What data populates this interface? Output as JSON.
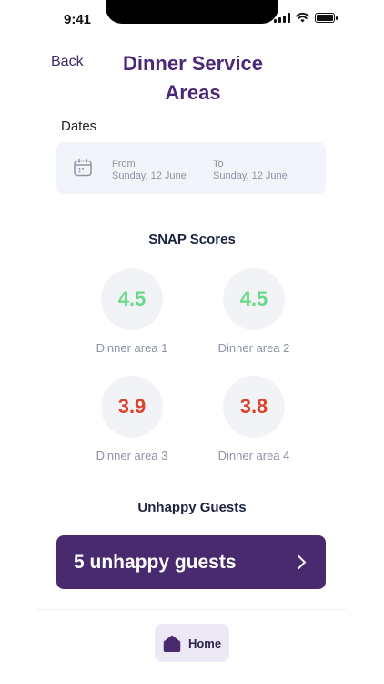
{
  "status_bar": {
    "time": "9:41"
  },
  "header": {
    "back_label": "Back",
    "title": "Dinner Service Areas"
  },
  "dates": {
    "label": "Dates",
    "from_label": "From",
    "from_value": "Sunday, 12 June",
    "to_label": "To",
    "to_value": "Sunday, 12 June"
  },
  "snap": {
    "title": "SNAP Scores",
    "areas": [
      {
        "score": "4.5",
        "label": "Dinner area 1",
        "status": "good"
      },
      {
        "score": "4.5",
        "label": "Dinner area 2",
        "status": "good"
      },
      {
        "score": "3.9",
        "label": "Dinner area 3",
        "status": "bad"
      },
      {
        "score": "3.8",
        "label": "Dinner area 4",
        "status": "bad"
      }
    ],
    "colors": {
      "good": "#6bd98a",
      "bad": "#d9432b"
    }
  },
  "unhappy": {
    "title": "Unhappy Guests",
    "button_label": "5 unhappy guests"
  },
  "nav": {
    "home_label": "Home"
  },
  "icons": [
    "calendar-icon",
    "chevron-right-icon",
    "home-icon",
    "signal-icon",
    "wifi-icon",
    "battery-icon"
  ]
}
